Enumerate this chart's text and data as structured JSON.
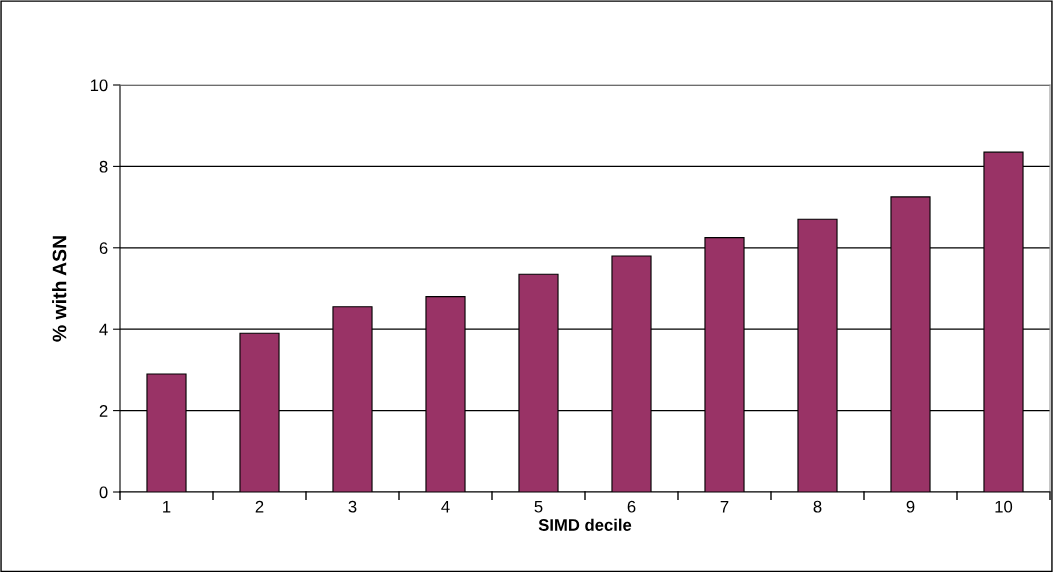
{
  "chart_data": {
    "type": "bar",
    "xlabel": "SIMD decile",
    "ylabel": "% with ASN",
    "categories": [
      "1",
      "2",
      "3",
      "4",
      "5",
      "6",
      "7",
      "8",
      "9",
      "10"
    ],
    "values": [
      2.9,
      3.9,
      4.55,
      4.8,
      5.35,
      5.8,
      6.25,
      6.7,
      7.25,
      8.35
    ],
    "color": "#993366",
    "ylim": [
      0,
      10
    ],
    "yticks": [
      0,
      2,
      4,
      6,
      8,
      10
    ],
    "grid": "y"
  }
}
